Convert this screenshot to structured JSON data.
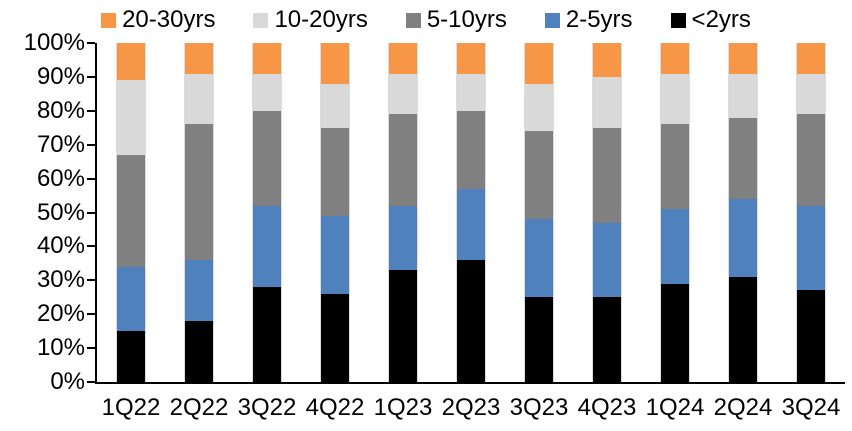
{
  "chart_data": {
    "type": "bar",
    "variant": "stacked-100-percent",
    "title": "",
    "xlabel": "",
    "ylabel": "",
    "grid": false,
    "categories": [
      "1Q22",
      "2Q22",
      "3Q22",
      "4Q22",
      "1Q23",
      "2Q23",
      "3Q23",
      "4Q23",
      "1Q24",
      "2Q24",
      "3Q24"
    ],
    "series": [
      {
        "name": "<2yrs",
        "color": "#000000",
        "values": [
          15,
          18,
          28,
          26,
          33,
          36,
          25,
          25,
          29,
          31,
          27
        ]
      },
      {
        "name": "2-5yrs",
        "color": "#4F81BD",
        "values": [
          19,
          18,
          24,
          23,
          19,
          21,
          23,
          22,
          22,
          23,
          25
        ]
      },
      {
        "name": "5-10yrs",
        "color": "#808080",
        "values": [
          33,
          40,
          28,
          26,
          27,
          23,
          26,
          28,
          25,
          24,
          27
        ]
      },
      {
        "name": "10-20yrs",
        "color": "#D9D9D9",
        "values": [
          22,
          15,
          11,
          13,
          12,
          11,
          14,
          15,
          15,
          13,
          12
        ]
      },
      {
        "name": "20-30yrs",
        "color": "#F79646",
        "values": [
          11,
          9,
          9,
          12,
          9,
          9,
          12,
          10,
          9,
          9,
          9
        ]
      }
    ],
    "stack_order_bottom_to_top": [
      "<2yrs",
      "2-5yrs",
      "5-10yrs",
      "10-20yrs",
      "20-30yrs"
    ],
    "legend": {
      "position": "top",
      "order": [
        "20-30yrs",
        "10-20yrs",
        "5-10yrs",
        "2-5yrs",
        "<2yrs"
      ]
    },
    "y_axis": {
      "min": 0,
      "max": 100,
      "step": 10,
      "unit": "%",
      "ticks": [
        "0%",
        "10%",
        "20%",
        "30%",
        "40%",
        "50%",
        "60%",
        "70%",
        "80%",
        "90%",
        "100%"
      ]
    },
    "axis_color": "#000000",
    "background_color": "#FFFFFF"
  }
}
